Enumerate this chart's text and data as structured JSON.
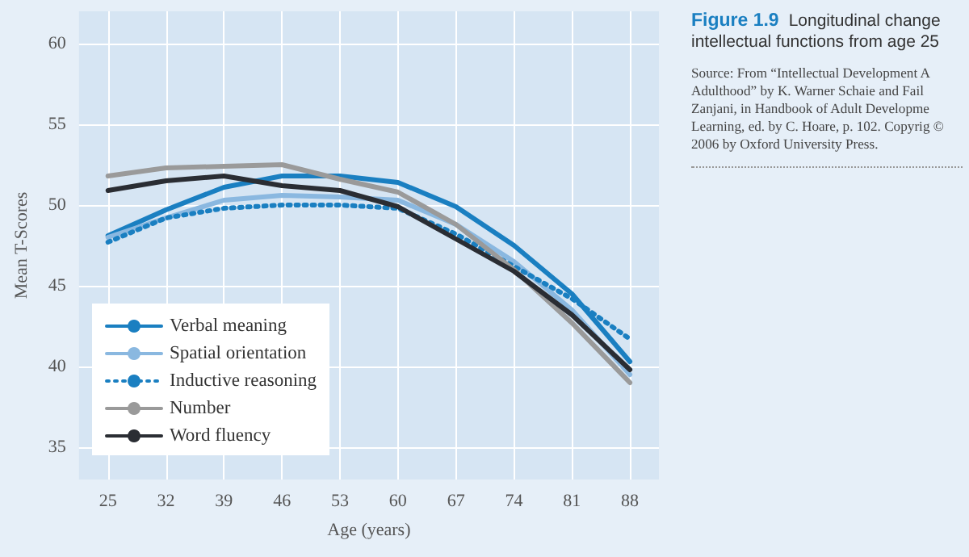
{
  "chart_data": {
    "type": "line",
    "title": "Figure 1.9",
    "subtitle": "Longitudinal change intellectual functions from age 25",
    "annotations": [
      "Source: From “Intellectual Development A Adulthood” by K. Warner Schaie and Fail Zanjani, in Handbook of Adult Developme Learning, ed. by C. Hoare, p. 102. Copyrig © 2006 by Oxford University Press."
    ],
    "xlabel": "Age (years)",
    "ylabel": "Mean T-Scores",
    "x": [
      25,
      32,
      39,
      46,
      53,
      60,
      67,
      74,
      81,
      88
    ],
    "xlim": [
      21.5,
      91.5
    ],
    "xticks": [
      25,
      32,
      39,
      46,
      53,
      60,
      67,
      74,
      81,
      88
    ],
    "ylim": [
      33,
      62
    ],
    "yticks": [
      35,
      40,
      45,
      50,
      55,
      60
    ],
    "grid": true,
    "legend": "bottom left",
    "marker": "none",
    "series": [
      {
        "name": "Verbal meaning",
        "color": "#1a7fc1",
        "line_style": "solid",
        "values": [
          48.1,
          49.7,
          51.1,
          51.8,
          51.8,
          51.4,
          49.9,
          47.5,
          44.5,
          40.3
        ]
      },
      {
        "name": "Spatial orientation",
        "color": "#8ab8e0",
        "line_style": "solid",
        "values": [
          48.0,
          49.2,
          50.3,
          50.6,
          50.5,
          50.3,
          48.8,
          46.5,
          43.5,
          39.5
        ]
      },
      {
        "name": "Inductive reasoning",
        "color": "#1a7fc1",
        "line_style": "dotted",
        "values": [
          47.7,
          49.2,
          49.8,
          50.0,
          50.0,
          49.8,
          48.2,
          46.2,
          44.2,
          41.7
        ]
      },
      {
        "name": "Number",
        "color": "#9a9a9a",
        "line_style": "solid",
        "values": [
          51.8,
          52.3,
          52.4,
          52.5,
          51.6,
          50.8,
          48.8,
          46.0,
          42.7,
          39.0
        ]
      },
      {
        "name": "Word fluency",
        "color": "#2a2d33",
        "line_style": "solid",
        "values": [
          50.9,
          51.5,
          51.8,
          51.2,
          50.9,
          49.9,
          47.9,
          45.9,
          43.2,
          39.8
        ]
      }
    ]
  }
}
